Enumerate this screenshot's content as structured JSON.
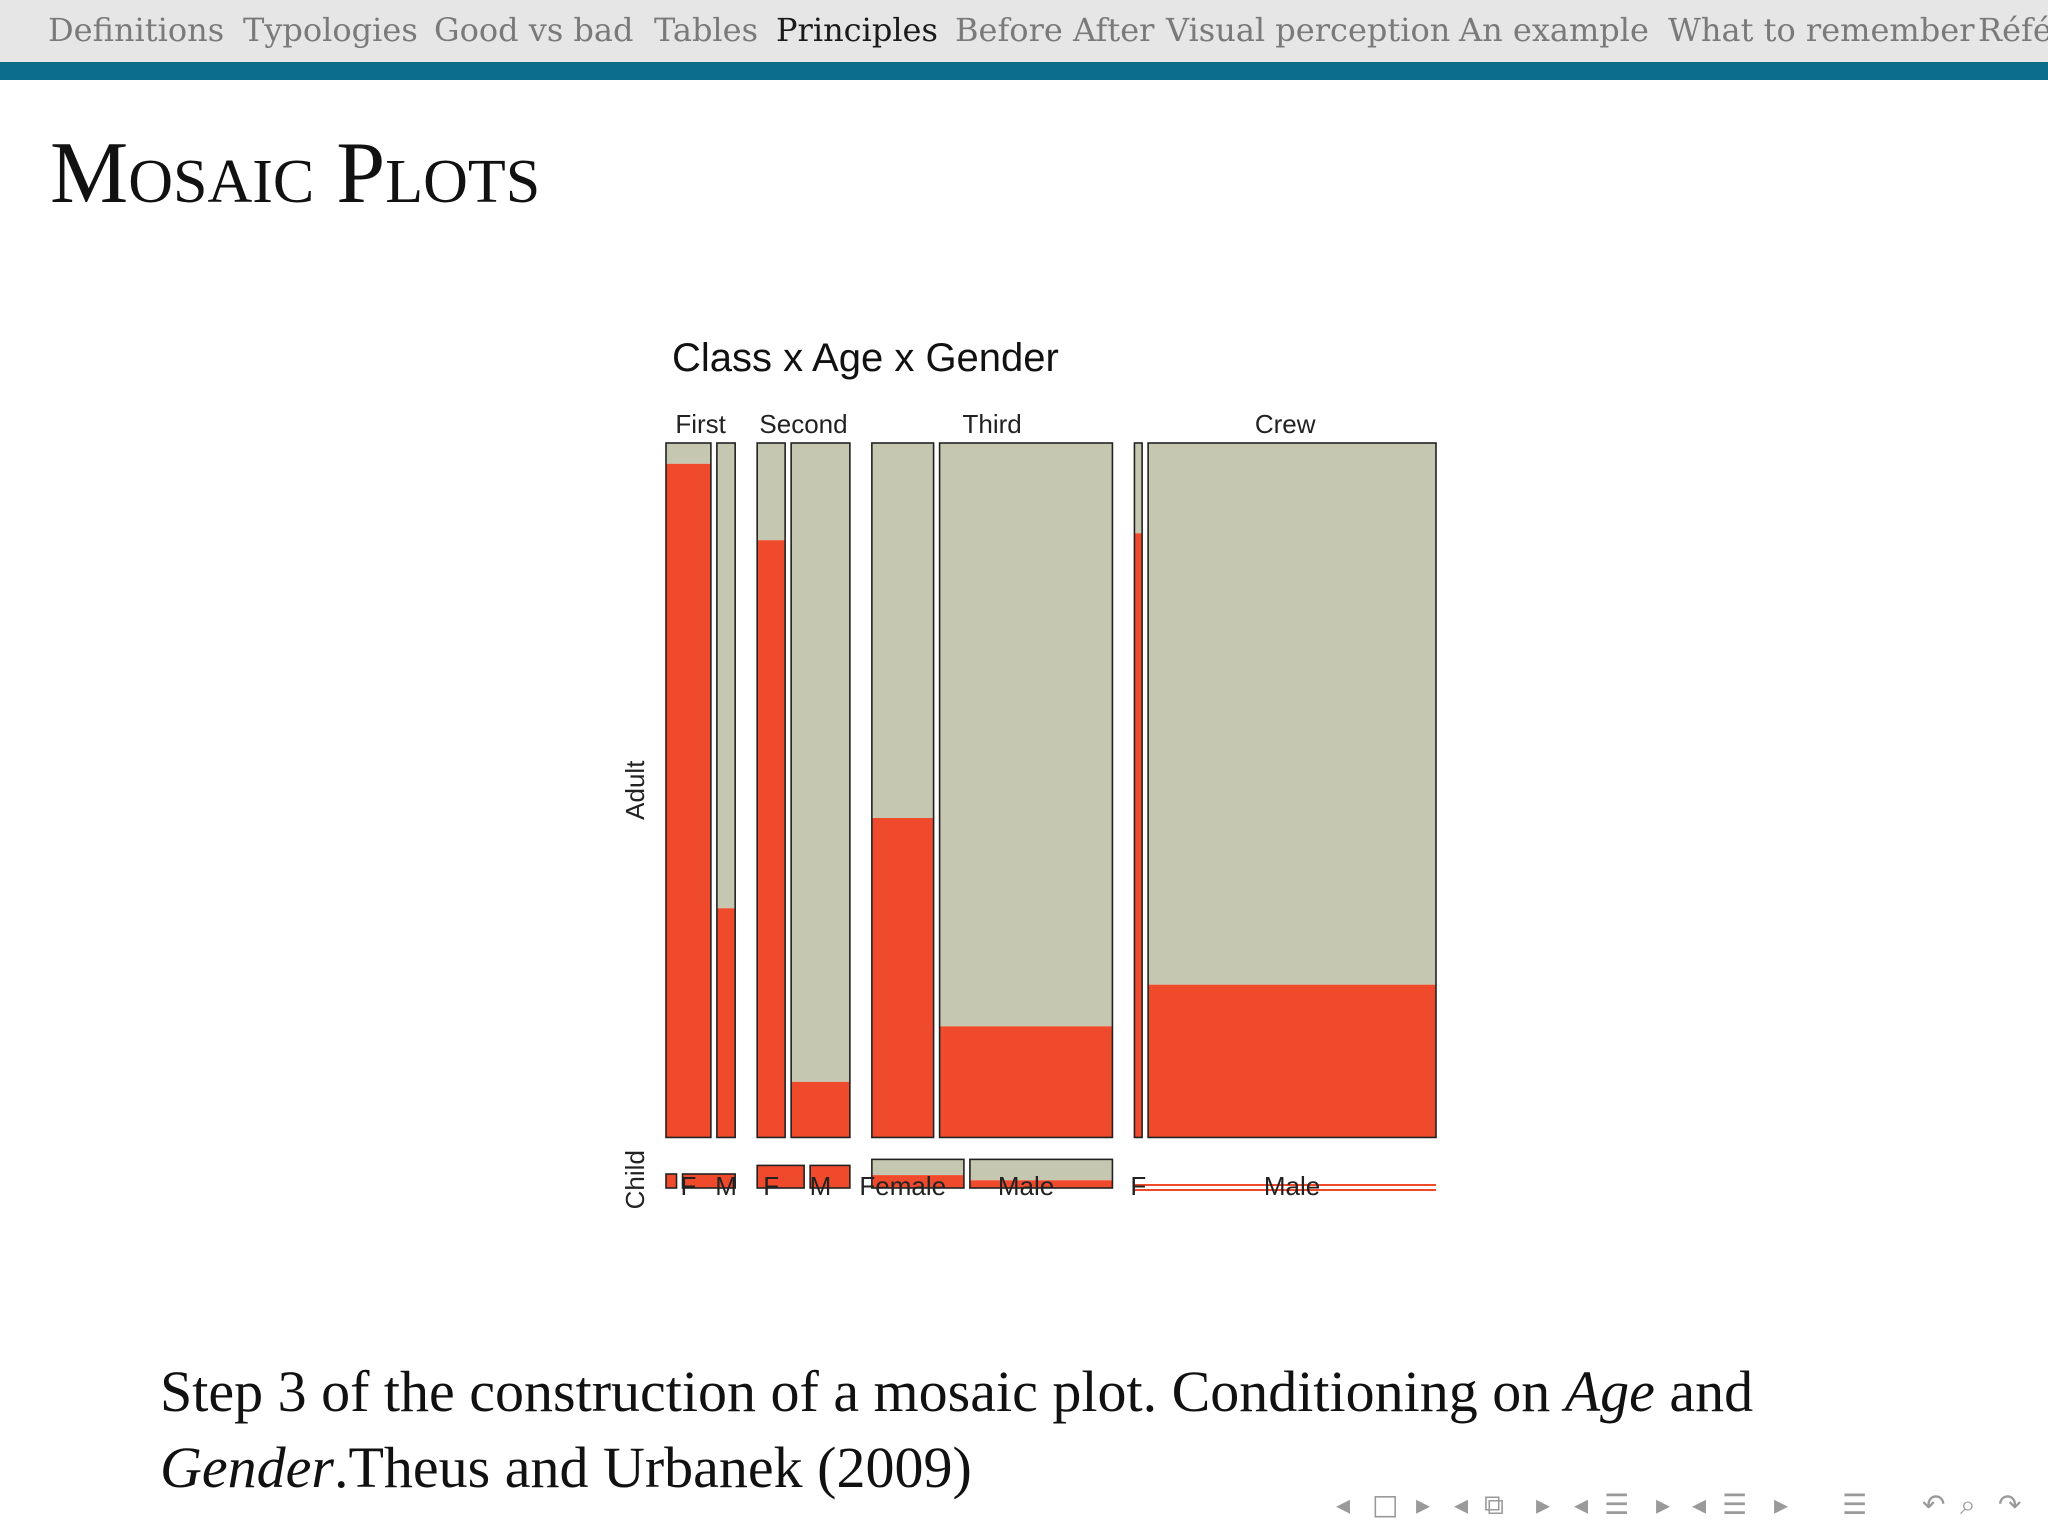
{
  "nav": {
    "items": [
      "Definitions",
      "Typologies",
      "Good vs bad",
      "Tables",
      "Principles",
      "Before After",
      "Visual perception",
      "An example",
      "What to remember",
      "Références"
    ],
    "active_index": 4
  },
  "slide": {
    "title": "Mosaic Plots"
  },
  "caption": {
    "part1": "Step 3 of the construction of a mosaic plot. Conditioning on ",
    "age": "Age",
    "part2": " and ",
    "gender": "Gender",
    "part3": ".Theus and Urbanek (2009)"
  },
  "chart_data": {
    "type": "mosaic",
    "title": "Class x Age x Gender",
    "colors": {
      "survived": "#f04a2c",
      "died": "#c5c7b0",
      "outline": "#222222"
    },
    "age_labels": [
      "Adult",
      "Child"
    ],
    "classes": [
      {
        "name": "First",
        "gender_labels": [
          "F",
          "M"
        ],
        "cells": {
          "adult_female": {
            "count": 140,
            "survived_fraction": 0.97
          },
          "adult_male": {
            "count": 57,
            "survived_fraction": 0.33
          },
          "child_female": {
            "count": 1,
            "survived_fraction": 1.0
          },
          "child_male": {
            "count": 5,
            "survived_fraction": 1.0
          }
        }
      },
      {
        "name": "Second",
        "gender_labels": [
          "F",
          "M"
        ],
        "cells": {
          "adult_female": {
            "count": 80,
            "survived_fraction": 0.86
          },
          "adult_male": {
            "count": 168,
            "survived_fraction": 0.08
          },
          "child_female": {
            "count": 13,
            "survived_fraction": 1.0
          },
          "child_male": {
            "count": 11,
            "survived_fraction": 1.0
          }
        }
      },
      {
        "name": "Third",
        "gender_labels": [
          "Female",
          "Male"
        ],
        "cells": {
          "adult_female": {
            "count": 165,
            "survived_fraction": 0.46
          },
          "adult_male": {
            "count": 462,
            "survived_fraction": 0.16
          },
          "child_female": {
            "count": 31,
            "survived_fraction": 0.45
          },
          "child_male": {
            "count": 48,
            "survived_fraction": 0.27
          }
        }
      },
      {
        "name": "Crew",
        "gender_labels": [
          "F",
          "Male"
        ],
        "cells": {
          "adult_female": {
            "count": 23,
            "survived_fraction": 0.87
          },
          "adult_male": {
            "count": 862,
            "survived_fraction": 0.22
          },
          "child_female": {
            "count": 0,
            "survived_fraction": 0
          },
          "child_male": {
            "count": 0,
            "survived_fraction": 0
          }
        }
      }
    ]
  },
  "beamer_nav": {
    "icons": [
      "arrow-left-icon",
      "frame-icon",
      "arrow-right-icon",
      "arrow-left-icon",
      "subsection-icon",
      "arrow-right-icon",
      "arrow-left-icon",
      "section-icon",
      "arrow-right-icon",
      "arrow-left-icon",
      "chapter-icon",
      "arrow-right-icon",
      "toc-icon",
      "back-icon",
      "search-icon",
      "forward-icon"
    ]
  }
}
